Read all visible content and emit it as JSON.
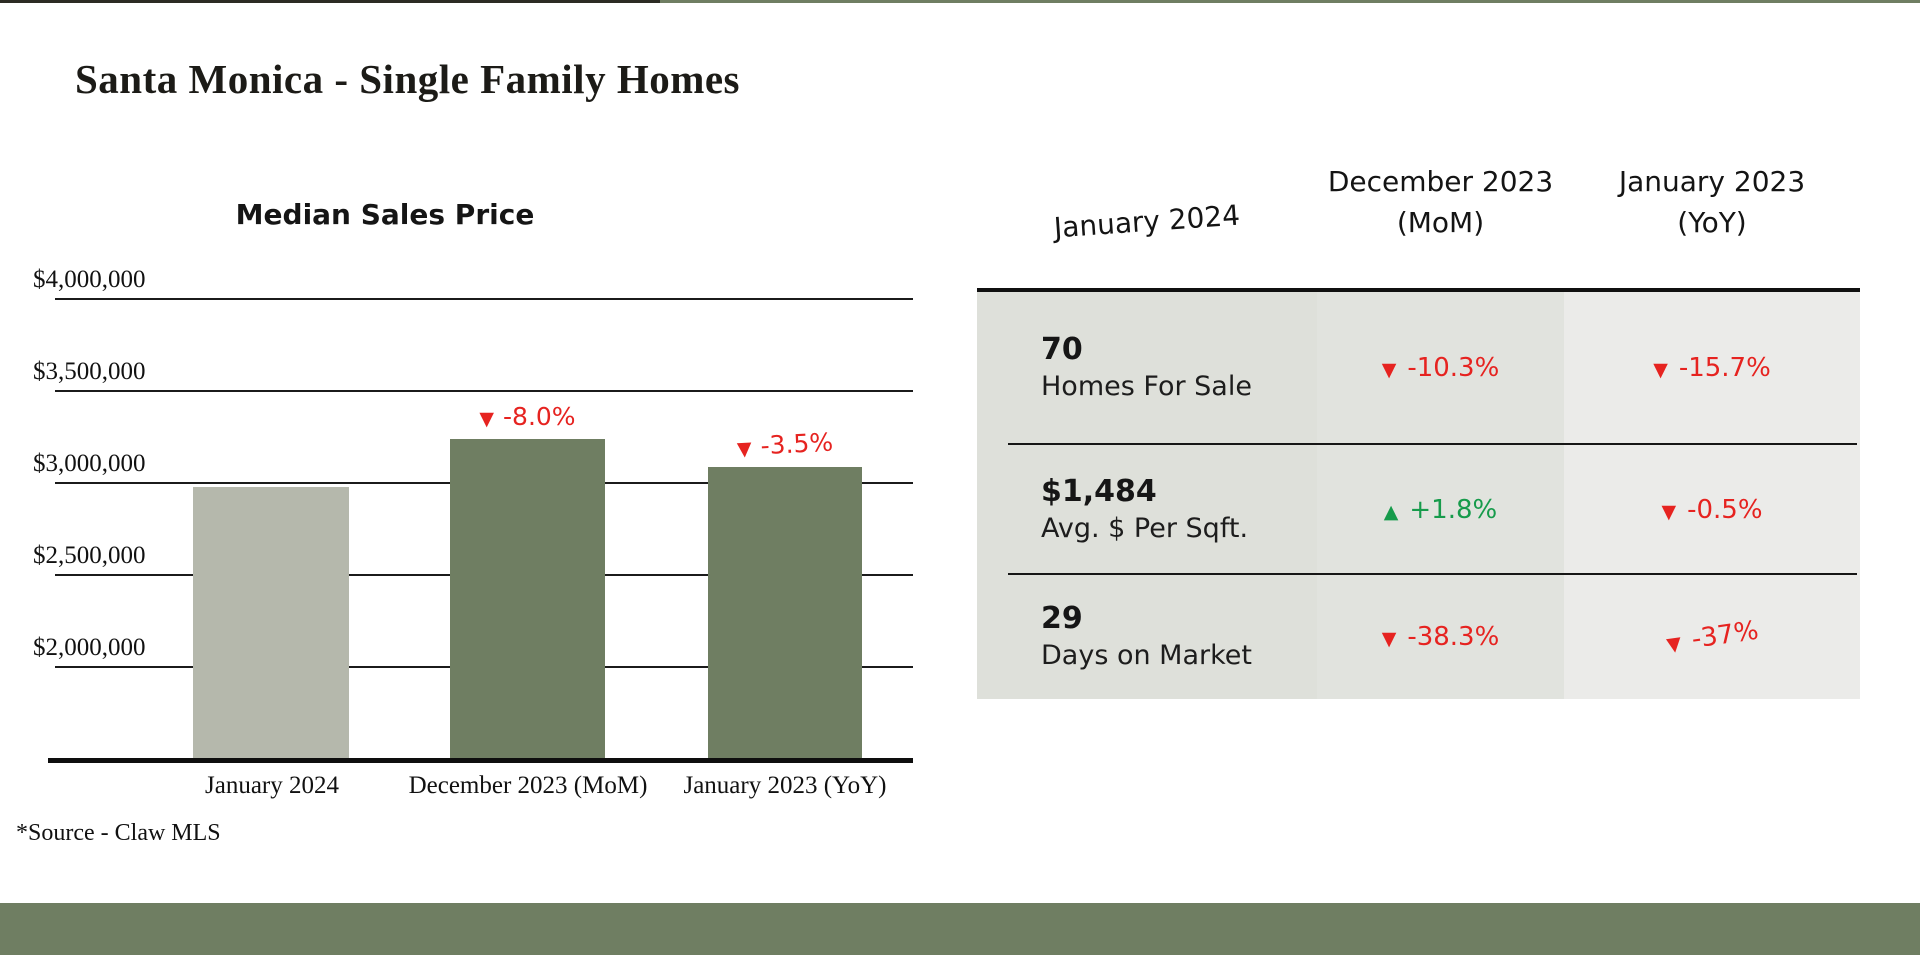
{
  "page": {
    "title": "Santa Monica - Single Family Homes",
    "source_note": "*Source - Claw MLS"
  },
  "colors": {
    "accent_green": "#6f7e62",
    "bar_light": "#b5b8ac",
    "negative_red": "#e62320",
    "positive_green": "#169b4b",
    "table_col1_bg": "#dee0da",
    "table_col2_bg": "#e1e3de",
    "table_col3_bg": "#ebebe9"
  },
  "chart_data": {
    "type": "bar",
    "title": "Median Sales Price",
    "categories": [
      "January 2024",
      "December 2023 (MoM)",
      "January 2023 (YoY)"
    ],
    "values": [
      2972500,
      3231000,
      3080000
    ],
    "bar_colors": [
      "#b5b8ac",
      "#6f7e62",
      "#6f7e62"
    ],
    "gridlines": [
      {
        "value": 4000000,
        "label": "$4,000,000"
      },
      {
        "value": 3500000,
        "label": "$3,500,000"
      },
      {
        "value": 3000000,
        "label": "$3,000,000"
      },
      {
        "value": 2500000,
        "label": "$2,500,000"
      },
      {
        "value": 2000000,
        "label": "$2,000,000"
      }
    ],
    "annotations": [
      {
        "bar_index": 1,
        "arrow": "▼",
        "text": "-8.0%",
        "trend": "down"
      },
      {
        "bar_index": 2,
        "arrow": "▼",
        "text": "-3.5%",
        "trend": "down"
      }
    ],
    "ylim": [
      1490000,
      4250000
    ],
    "grid": true,
    "legend": false,
    "xlabel": "",
    "ylabel": ""
  },
  "table": {
    "headers": [
      {
        "line1": "January 2024",
        "line2": ""
      },
      {
        "line1": "December 2023",
        "line2": "(MoM)"
      },
      {
        "line1": "January 2023",
        "line2": "(YoY)"
      }
    ],
    "rows": [
      {
        "value": "70",
        "label": "Homes For Sale",
        "mom": {
          "arrow": "▼",
          "text": "-10.3%",
          "trend": "down"
        },
        "yoy": {
          "arrow": "▼",
          "text": "-15.7%",
          "trend": "down"
        }
      },
      {
        "value": "$1,484",
        "label": "Avg. $ Per Sqft.",
        "mom": {
          "arrow": "▲",
          "text": "+1.8%",
          "trend": "up"
        },
        "yoy": {
          "arrow": "▼",
          "text": "-0.5%",
          "trend": "down"
        }
      },
      {
        "value": "29",
        "label": "Days on Market",
        "mom": {
          "arrow": "▼",
          "text": "-38.3%",
          "trend": "down"
        },
        "yoy": {
          "arrow": "▼",
          "text": "-37%",
          "trend": "down"
        }
      }
    ]
  }
}
